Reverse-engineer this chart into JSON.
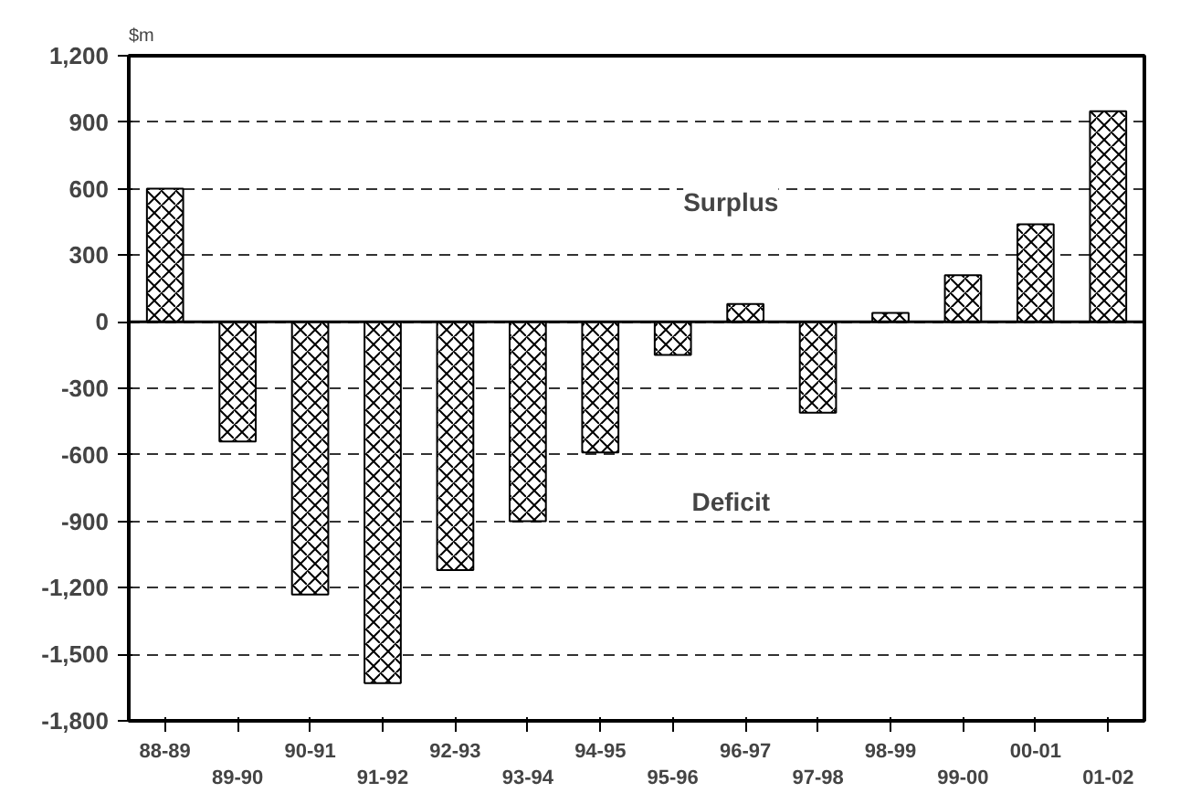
{
  "chart_data": {
    "type": "bar",
    "ylabel": "$m",
    "categories": [
      "88-89",
      "89-90",
      "90-91",
      "91-92",
      "92-93",
      "93-94",
      "94-95",
      "95-96",
      "96-97",
      "97-98",
      "98-99",
      "99-00",
      "00-01",
      "01-02"
    ],
    "values": [
      600,
      -540,
      -1230,
      -1630,
      -1120,
      -900,
      -590,
      -150,
      80,
      -410,
      40,
      210,
      440,
      950
    ],
    "color": "#ffffff",
    "ylim": [
      -1800,
      1200
    ],
    "yticks": [
      {
        "value": -1800,
        "label": "-1,800"
      },
      {
        "value": -1500,
        "label": "-1,500"
      },
      {
        "value": -1200,
        "label": "-1,200"
      },
      -900,
      -600,
      -300,
      0,
      300,
      600,
      900,
      {
        "value": 1200,
        "label": "1,200"
      }
    ],
    "grid": "y",
    "annotations": [
      "Surplus",
      "Deficit"
    ]
  }
}
